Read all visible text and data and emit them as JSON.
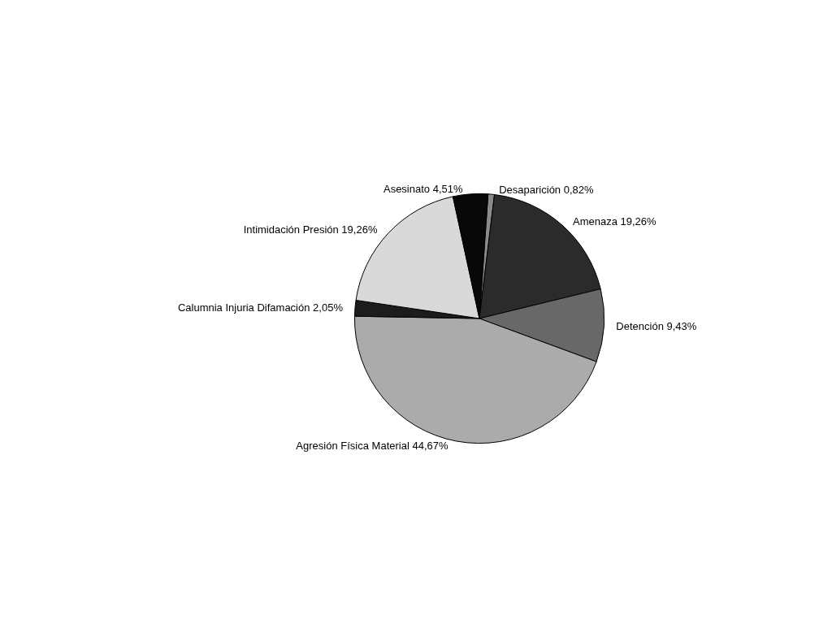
{
  "chart_data": {
    "type": "pie",
    "categories": [
      "Desaparición",
      "Amenaza",
      "Detención",
      "Agresión Física Material",
      "Calumnia Injuria Difamación",
      "Intimidación Presión",
      "Asesinato"
    ],
    "values": [
      0.82,
      19.26,
      9.43,
      44.67,
      2.05,
      19.26,
      4.51
    ],
    "value_labels": [
      "0,82%",
      "19,26%",
      "9,43%",
      "44,67%",
      "2,05%",
      "19,26%",
      "4,51%"
    ],
    "colors": [
      "#8a8a8a",
      "#2b2b2b",
      "#686868",
      "#ababab",
      "#1c1c1c",
      "#d9d9d9",
      "#080808"
    ],
    "legend": false
  }
}
